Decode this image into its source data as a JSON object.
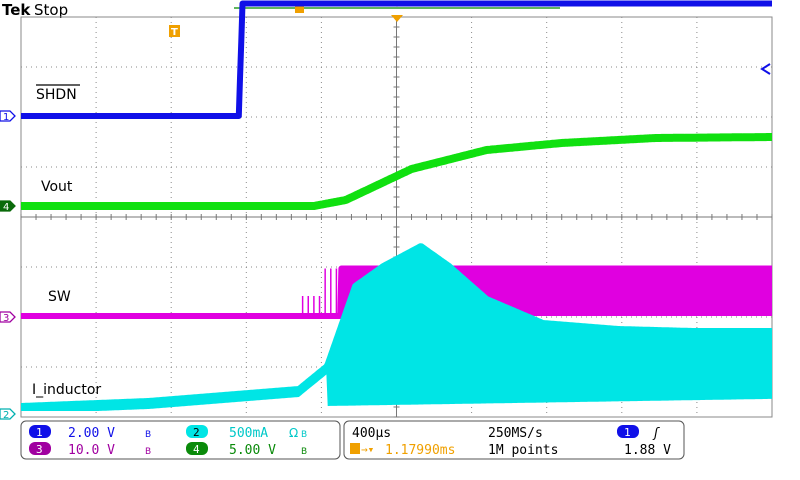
{
  "header": {
    "brand": "Tek",
    "status": "Stop"
  },
  "trace_labels": {
    "shdn": "SHDN",
    "vout": "Vout",
    "sw": "SW",
    "inductor": "I_inductor"
  },
  "channel_markers": {
    "ch1": "1",
    "ch2": "2",
    "ch3": "3",
    "ch4": "4",
    "trigger": "T"
  },
  "status_bar": {
    "ch1_num": "1",
    "ch1_scale": "2.00 V",
    "ch1_bw": "B",
    "ch2_num": "2",
    "ch2_scale": "500mA",
    "ch2_extra": "Ω",
    "ch2_bw": "B",
    "ch3_num": "3",
    "ch3_scale": "10.0 V",
    "ch3_bw": "B",
    "ch4_num": "4",
    "ch4_scale": "5.00 V",
    "ch4_bw": "B",
    "timebase": "400µs",
    "sample_rate": "250MS/s",
    "trigger_pos": "1.17990ms",
    "record_length": "1M points",
    "trigger_source": "1",
    "trigger_slope": "ʃ",
    "trigger_level": "1.88 V"
  },
  "colors": {
    "ch1": "#1010e8",
    "ch2": "#00e5e5",
    "ch3": "#e000e0",
    "ch4": "#10e010",
    "trigger": "#f0a000",
    "grid": "#8a8a8a",
    "background": "#ffffff"
  },
  "chart_data": {
    "type": "line",
    "x_unit": "ms",
    "xlim": [
      -1.18,
      2.82
    ],
    "series": [
      {
        "name": "SHDN",
        "channel": 1,
        "unit": "V",
        "x": [
          -1.18,
          -0.02,
          0.0,
          2.82
        ],
        "values": [
          0.0,
          0.0,
          4.5,
          4.5
        ]
      },
      {
        "name": "Vout",
        "channel": 4,
        "unit": "V",
        "x": [
          -1.18,
          0.38,
          0.55,
          0.9,
          1.3,
          1.7,
          2.2,
          2.82
        ],
        "values": [
          0.0,
          0.0,
          0.6,
          3.7,
          5.6,
          6.3,
          6.8,
          6.9
        ]
      },
      {
        "name": "SW",
        "channel": 3,
        "unit": "V",
        "x": [
          -1.18,
          0.4,
          0.52,
          0.52,
          2.82
        ],
        "values": [
          0.0,
          0.0,
          0.0,
          9.5,
          9.5
        ]
      },
      {
        "name": "I_inductor",
        "channel": 2,
        "unit": "A",
        "x": [
          -1.18,
          -0.5,
          0.3,
          0.45,
          0.6,
          0.75,
          0.95,
          1.1,
          1.3,
          1.6,
          2.0,
          2.4,
          2.82
        ],
        "values": [
          0.05,
          0.1,
          0.22,
          0.45,
          1.25,
          1.45,
          1.65,
          1.45,
          1.12,
          0.88,
          0.82,
          0.8,
          0.8
        ]
      }
    ]
  }
}
